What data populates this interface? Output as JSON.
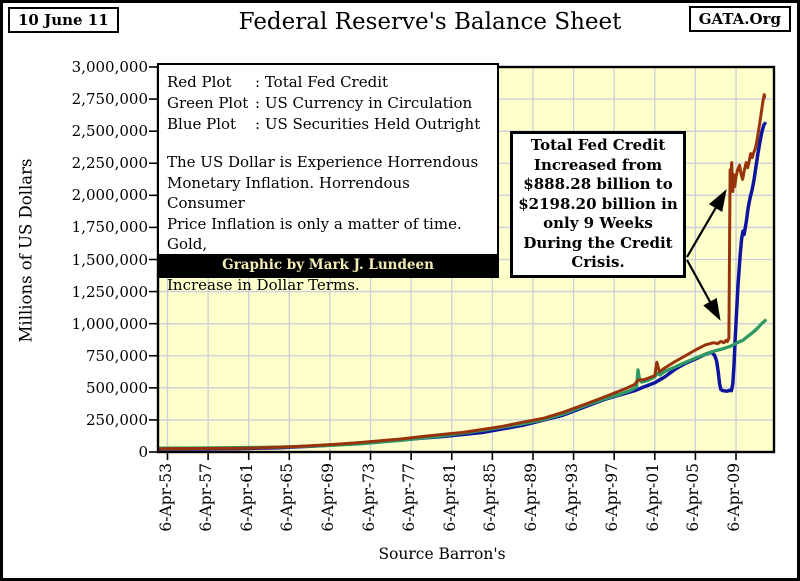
{
  "header": {
    "date_badge": "10 June 11",
    "site_badge": "GATA.Org",
    "title": "Federal Reserve's Balance Sheet"
  },
  "legend": {
    "entries": [
      {
        "label": "Red Plot",
        "text": ": Total Fed Credit"
      },
      {
        "label": "Green Plot",
        "text": ": US Currency in Circulation"
      },
      {
        "label": "Blue Plot",
        "text": ": US Securities Held Outright"
      }
    ],
    "commentary": "The US Dollar is Experience Horrendous\nMonetary Inflation.  Horrendous Consumer\nPrice Inflation is only a matter of time.  Gold,\nand Silver are only going to Continue to\nIncrease in Dollar Terms.",
    "credit": "Graphic by Mark J. Lundeen"
  },
  "annotation": {
    "text": "Total Fed Credit\nIncreased from\n$888.28 billion to\n$2198.20 billion in\nonly 9 Weeks\nDuring the Credit\nCrisis."
  },
  "chart_data": {
    "type": "line",
    "title": "Federal Reserve's Balance Sheet",
    "ylabel": "Millions of US Dollars",
    "xlabel": "Source Barron's",
    "ylim": [
      0,
      3000000
    ],
    "grid": true,
    "plot_bg": "#FFFFCC",
    "grid_color": "#CBCEDB",
    "legend_position": "top-left text box",
    "y_tick_values": [
      0,
      250000,
      500000,
      750000,
      1000000,
      1250000,
      1500000,
      1750000,
      2000000,
      2250000,
      2500000,
      2750000,
      3000000
    ],
    "y_tick_labels": [
      "0",
      "250,000",
      "500,000",
      "750,000",
      "1,000,000",
      "1,250,000",
      "1,500,000",
      "1,750,000",
      "2,000,000",
      "2,250,000",
      "2,500,000",
      "2,750,000",
      "3,000,000"
    ],
    "x_tick_years": [
      1953,
      1957,
      1961,
      1965,
      1969,
      1973,
      1977,
      1981,
      1985,
      1989,
      1993,
      1997,
      2001,
      2005,
      2009
    ],
    "x_tick_labels": [
      "6-Apr-53",
      "6-Apr-57",
      "6-Apr-61",
      "6-Apr-65",
      "6-Apr-69",
      "6-Apr-73",
      "6-Apr-77",
      "6-Apr-81",
      "6-Apr-85",
      "6-Apr-89",
      "6-Apr-93",
      "6-Apr-97",
      "6-Apr-01",
      "6-Apr-05",
      "6-Apr-09"
    ],
    "series": [
      {
        "name": "Total Fed Credit",
        "color": "#97330B",
        "points": [
          [
            1952.2,
            26000
          ],
          [
            1954,
            26500
          ],
          [
            1956,
            27000
          ],
          [
            1958,
            28000
          ],
          [
            1960,
            29500
          ],
          [
            1962,
            32000
          ],
          [
            1964,
            38000
          ],
          [
            1966,
            44000
          ],
          [
            1968,
            53000
          ],
          [
            1970,
            62000
          ],
          [
            1972,
            74000
          ],
          [
            1974,
            88000
          ],
          [
            1976,
            101000
          ],
          [
            1978,
            120000
          ],
          [
            1980,
            136000
          ],
          [
            1982,
            152000
          ],
          [
            1984,
            175000
          ],
          [
            1986,
            200000
          ],
          [
            1988,
            232000
          ],
          [
            1990,
            262000
          ],
          [
            1992,
            310000
          ],
          [
            1994,
            368000
          ],
          [
            1996,
            428000
          ],
          [
            1998,
            490000
          ],
          [
            1999,
            525000
          ],
          [
            1999.35,
            560000
          ],
          [
            2000,
            565000
          ],
          [
            2001,
            595000
          ],
          [
            2001.2,
            700000
          ],
          [
            2001.45,
            625000
          ],
          [
            2002,
            655000
          ],
          [
            2003,
            705000
          ],
          [
            2004,
            750000
          ],
          [
            2005,
            795000
          ],
          [
            2006,
            835000
          ],
          [
            2006.8,
            852000
          ],
          [
            2007.2,
            845000
          ],
          [
            2007.5,
            862000
          ],
          [
            2007.8,
            852000
          ],
          [
            2008,
            870000
          ],
          [
            2008.15,
            860000
          ],
          [
            2008.3,
            888280
          ],
          [
            2008.42,
            2198200
          ],
          [
            2008.5,
            2160000
          ],
          [
            2008.58,
            2255000
          ],
          [
            2008.68,
            2030000
          ],
          [
            2008.78,
            2160000
          ],
          [
            2008.88,
            2070000
          ],
          [
            2009,
            2145000
          ],
          [
            2009.15,
            2195000
          ],
          [
            2009.35,
            2235000
          ],
          [
            2009.5,
            2165000
          ],
          [
            2009.65,
            2125000
          ],
          [
            2009.85,
            2205000
          ],
          [
            2010,
            2255000
          ],
          [
            2010.15,
            2215000
          ],
          [
            2010.3,
            2265000
          ],
          [
            2010.45,
            2325000
          ],
          [
            2010.6,
            2295000
          ],
          [
            2010.75,
            2335000
          ],
          [
            2010.9,
            2365000
          ],
          [
            2011.05,
            2420000
          ],
          [
            2011.2,
            2490000
          ],
          [
            2011.35,
            2570000
          ],
          [
            2011.5,
            2650000
          ],
          [
            2011.65,
            2730000
          ],
          [
            2011.78,
            2785000
          ],
          [
            2011.82,
            2765000
          ]
        ]
      },
      {
        "name": "US Currency in Circulation",
        "color": "#2F9966",
        "points": [
          [
            1952.2,
            29500
          ],
          [
            1956,
            31000
          ],
          [
            1960,
            33500
          ],
          [
            1964,
            38500
          ],
          [
            1968,
            48000
          ],
          [
            1972,
            64000
          ],
          [
            1976,
            91000
          ],
          [
            1980,
            125000
          ],
          [
            1984,
            168000
          ],
          [
            1988,
            220000
          ],
          [
            1990,
            252000
          ],
          [
            1992,
            298000
          ],
          [
            1994,
            358000
          ],
          [
            1996,
            412000
          ],
          [
            1997.5,
            448000
          ],
          [
            1998.6,
            480000
          ],
          [
            1999.2,
            505000
          ],
          [
            1999.35,
            640000
          ],
          [
            1999.5,
            560000
          ],
          [
            1999.7,
            545000
          ],
          [
            2000.3,
            558000
          ],
          [
            2001,
            585000
          ],
          [
            2001.2,
            615000
          ],
          [
            2001.5,
            600000
          ],
          [
            2002,
            628000
          ],
          [
            2003,
            662000
          ],
          [
            2004,
            698000
          ],
          [
            2005,
            732000
          ],
          [
            2006,
            762000
          ],
          [
            2007,
            790000
          ],
          [
            2007.6,
            802000
          ],
          [
            2008.1,
            815000
          ],
          [
            2008.5,
            825000
          ],
          [
            2008.9,
            842000
          ],
          [
            2009.3,
            858000
          ],
          [
            2009.7,
            872000
          ],
          [
            2010.1,
            898000
          ],
          [
            2010.5,
            922000
          ],
          [
            2010.9,
            948000
          ],
          [
            2011.2,
            972000
          ],
          [
            2011.5,
            998000
          ],
          [
            2011.75,
            1015000
          ],
          [
            2011.88,
            1025000
          ]
        ]
      },
      {
        "name": "US Securities Held Outright",
        "color": "#0F149E",
        "points": [
          [
            1952.2,
            23000
          ],
          [
            1956,
            24000
          ],
          [
            1960,
            26500
          ],
          [
            1964,
            33000
          ],
          [
            1968,
            48000
          ],
          [
            1972,
            68000
          ],
          [
            1976,
            96000
          ],
          [
            1980,
            120000
          ],
          [
            1984,
            152000
          ],
          [
            1988,
            208000
          ],
          [
            1992,
            288000
          ],
          [
            1996,
            408000
          ],
          [
            1999,
            478000
          ],
          [
            2000,
            510000
          ],
          [
            2001,
            540000
          ],
          [
            2002,
            585000
          ],
          [
            2003,
            645000
          ],
          [
            2004,
            690000
          ],
          [
            2005,
            725000
          ],
          [
            2006,
            762000
          ],
          [
            2006.6,
            778000
          ],
          [
            2006.9,
            752000
          ],
          [
            2007.1,
            705000
          ],
          [
            2007.25,
            625000
          ],
          [
            2007.38,
            532000
          ],
          [
            2007.5,
            488000
          ],
          [
            2007.7,
            478000
          ],
          [
            2008.1,
            474000
          ],
          [
            2008.35,
            480000
          ],
          [
            2008.55,
            478000
          ],
          [
            2008.68,
            530000
          ],
          [
            2008.8,
            680000
          ],
          [
            2008.92,
            880000
          ],
          [
            2009.05,
            1080000
          ],
          [
            2009.2,
            1300000
          ],
          [
            2009.4,
            1530000
          ],
          [
            2009.55,
            1660000
          ],
          [
            2009.68,
            1720000
          ],
          [
            2009.8,
            1695000
          ],
          [
            2010,
            1790000
          ],
          [
            2010.2,
            1905000
          ],
          [
            2010.4,
            1985000
          ],
          [
            2010.6,
            2050000
          ],
          [
            2010.78,
            2125000
          ],
          [
            2010.95,
            2215000
          ],
          [
            2011.15,
            2320000
          ],
          [
            2011.35,
            2415000
          ],
          [
            2011.55,
            2495000
          ],
          [
            2011.75,
            2550000
          ],
          [
            2011.85,
            2560000
          ]
        ]
      }
    ]
  }
}
